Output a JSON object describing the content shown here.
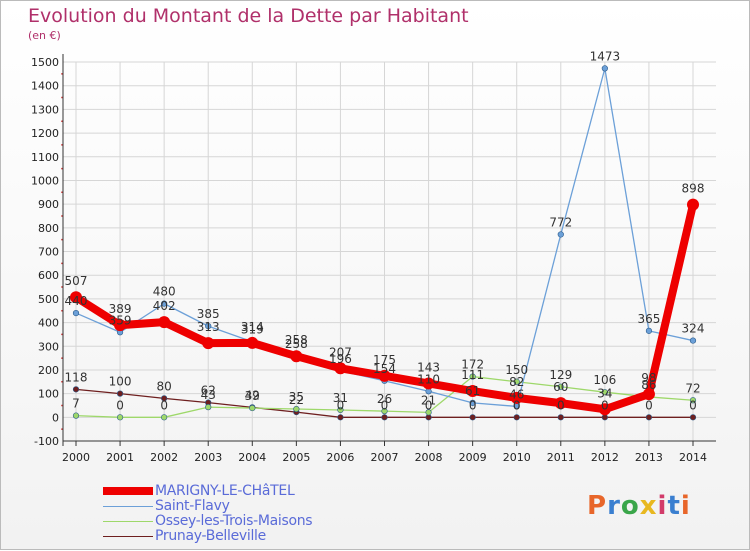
{
  "header": {
    "title": "Evolution du Montant de la Dette par Habitant",
    "unit": "(en €)"
  },
  "logo": {
    "text": "Proxiti",
    "colors": [
      "#e8662a",
      "#3a7fd0",
      "#3aa64a",
      "#e8b820",
      "#d23b6a",
      "#3a7fd0",
      "#e8662a"
    ]
  },
  "colors": {
    "title": "#b0306a",
    "axis": "#333333",
    "grid": "#d6d6d6"
  },
  "chart_data": {
    "type": "line",
    "title": "Evolution du Montant de la Dette par Habitant",
    "ylabel": "(en €)",
    "xlabel": "",
    "x": [
      "2000",
      "2001",
      "2002",
      "2003",
      "2004",
      "2005",
      "2006",
      "2007",
      "2008",
      "2009",
      "2010",
      "2011",
      "2012",
      "2013",
      "2014"
    ],
    "ylim": [
      -100,
      1500
    ],
    "yticks": [
      -100,
      0,
      100,
      200,
      300,
      400,
      500,
      600,
      700,
      800,
      900,
      1000,
      1100,
      1200,
      1300,
      1400,
      1500
    ],
    "grid": true,
    "legend_position": "bottom-left",
    "series": [
      {
        "name": "Prunay-Belleville",
        "color": "#6e1f1f",
        "width": 1.3,
        "marker": 2.8,
        "values": [
          118,
          100,
          80,
          62,
          42,
          22,
          0,
          0,
          0,
          0,
          0,
          0,
          0,
          0,
          0
        ]
      },
      {
        "name": "Ossey-les-Trois-Maisons",
        "color": "#9ed86a",
        "width": 1.3,
        "marker": 2.8,
        "values": [
          7,
          0,
          0,
          43,
          39,
          35,
          31,
          26,
          21,
          172,
          150,
          129,
          106,
          86,
          72
        ]
      },
      {
        "name": "Saint-Flavy",
        "color": "#6ca0d8",
        "width": 1.3,
        "marker": 2.8,
        "values": [
          440,
          359,
          480,
          385,
          319,
          258,
          196,
          154,
          110,
          61,
          46,
          772,
          1473,
          365,
          324
        ]
      },
      {
        "name": "MARIGNY-LE-CHâTEL",
        "color": "#ee0000",
        "width": 8,
        "marker": 6,
        "values": [
          507,
          389,
          402,
          313,
          314,
          258,
          207,
          175,
          143,
          111,
          82,
          60,
          34,
          98,
          898
        ]
      }
    ]
  }
}
